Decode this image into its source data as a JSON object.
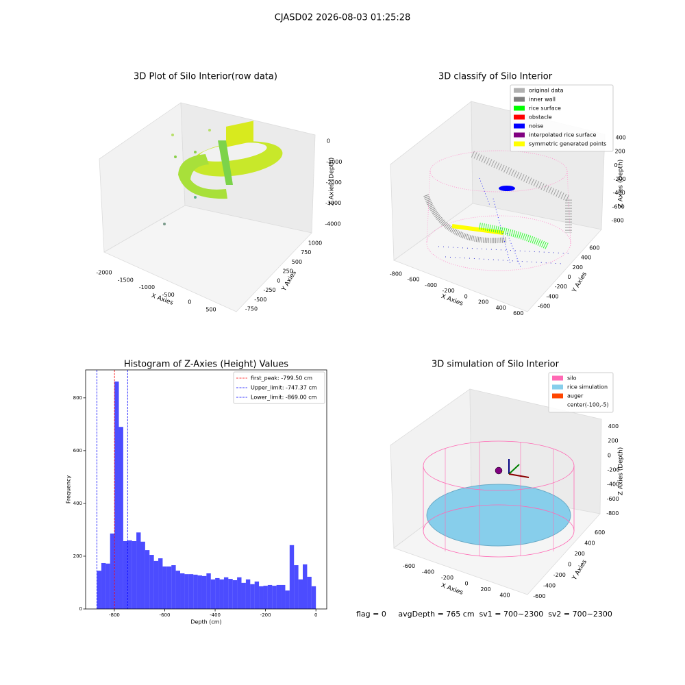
{
  "title": "CJASD02 2026-08-03 01:25:28",
  "footer": "flag = 0     avgDepth = 765 cm  sv1 = 700~2300  sv2 = 700~2300",
  "chart_data": [
    {
      "type": "scatter3d",
      "title": "3D Plot of Silo Interior(row data)",
      "xlabel": "X Axies",
      "ylabel": "Y Axies",
      "zlabel": "Z Axies (Depth)",
      "xlim": [
        -2050,
        1000
      ],
      "xticks": [
        -2000,
        -1500,
        -1000,
        -500,
        0,
        500
      ],
      "ylim": [
        -850,
        1100
      ],
      "yticks": [
        -750,
        -500,
        -250,
        0,
        250,
        500,
        750,
        1000
      ],
      "zlim": [
        -4500,
        300
      ],
      "zticks": [
        -4000,
        -3000,
        -2000,
        -1000,
        0
      ]
    },
    {
      "type": "scatter3d",
      "title": "3D classify of Silo Interior",
      "xlabel": "X Axies",
      "ylabel": "Y Axies",
      "zlabel": "Z Axies (Depth)",
      "xlim": [
        -870,
        680
      ],
      "xticks": [
        -800,
        -600,
        -400,
        -200,
        0,
        200,
        400,
        600
      ],
      "ylim": [
        -700,
        700
      ],
      "yticks": [
        -600,
        -400,
        -200,
        0,
        200,
        400,
        600
      ],
      "zlim": [
        -900,
        500
      ],
      "zticks": [
        -800,
        -600,
        -400,
        -200,
        0,
        200,
        400
      ],
      "legend": {
        "loc": "upper right",
        "entries": [
          {
            "name": "original data",
            "color": "#b0b0b0"
          },
          {
            "name": "inner wall",
            "color": "#808080"
          },
          {
            "name": "rice surface",
            "color": "#00ff00"
          },
          {
            "name": "obstacle",
            "color": "#ff0000"
          },
          {
            "name": "noise",
            "color": "#0000ff"
          },
          {
            "name": "interpolated rice surface",
            "color": "#800080"
          },
          {
            "name": "symmetric generated points",
            "color": "#ffff00"
          }
        ]
      }
    },
    {
      "type": "histogram",
      "title": "Histogram of Z-Axies (Height) Values",
      "xlabel": "Depth (cm)",
      "ylabel": "Frequency",
      "color": "#0000ff",
      "alpha": 0.7,
      "bins": [
        -869.0,
        -851.62,
        -834.24,
        -816.86,
        -799.48,
        -782.1,
        -764.72,
        -747.34,
        -729.96,
        -712.58,
        -695.2,
        -677.82,
        -660.44,
        -643.06,
        -625.68,
        -608.3,
        -590.92,
        -573.54,
        -556.16,
        -538.78,
        -521.4,
        -504.02,
        -486.64,
        -469.26,
        -451.88,
        -434.5,
        -417.12,
        -399.74,
        -382.36,
        -364.98,
        -347.6,
        -330.22,
        -312.84,
        -295.46,
        -278.08,
        -260.7,
        -243.32,
        -225.94,
        -208.56,
        -191.18,
        -173.8,
        -156.42,
        -139.04,
        -121.66,
        -104.28,
        -86.9,
        -69.52,
        -52.14,
        -34.76,
        -17.38,
        0
      ],
      "values": [
        145,
        174,
        172,
        286,
        862,
        690,
        257,
        260,
        257,
        290,
        255,
        223,
        205,
        182,
        192,
        161,
        161,
        166,
        145,
        135,
        132,
        132,
        130,
        127,
        125,
        135,
        112,
        117,
        112,
        120,
        114,
        109,
        120,
        99,
        112,
        94,
        104,
        86,
        88,
        91,
        88,
        91,
        91,
        70,
        242,
        166,
        112,
        169,
        122,
        86
      ],
      "xlim": [
        -914,
        43
      ],
      "xticks": [
        -800,
        -600,
        -400,
        -200,
        0
      ],
      "ylim": [
        0,
        906
      ],
      "yticks": [
        0,
        200,
        400,
        600,
        800
      ],
      "vlines": [
        {
          "name": "first_peak: -799.50 cm",
          "value": -799.5,
          "color": "#ff0000"
        },
        {
          "name": "Upper_limit: -747.37 cm",
          "value": -747.37,
          "color": "#0000ff"
        },
        {
          "name": "Lower_limit: -869.00 cm",
          "value": -869.0,
          "color": "#0000ff"
        }
      ],
      "legend": {
        "loc": "upper right"
      }
    },
    {
      "type": "surface3d",
      "title": "3D simulation of Silo Interior",
      "xlabel": "X Axies",
      "ylabel": "Y Axies",
      "zlabel": "Z Axies (Depth)",
      "xlim": [
        -750,
        500
      ],
      "xticks": [
        -600,
        -400,
        -200,
        0,
        200,
        400
      ],
      "ylim": [
        -700,
        700
      ],
      "yticks": [
        -600,
        -400,
        -200,
        0,
        200,
        400,
        600
      ],
      "zlim": [
        -900,
        500
      ],
      "zticks": [
        -800,
        -600,
        -400,
        -200,
        0,
        200,
        400
      ],
      "legend": {
        "loc": "upper right",
        "entries": [
          {
            "name": "silo",
            "color": "#ff69b4"
          },
          {
            "name": "rice simulation",
            "color": "#87ceeb"
          },
          {
            "name": "auger",
            "color": "#ff4500"
          },
          {
            "name": "center(-100,-5)",
            "color": "#ffffff"
          }
        ]
      }
    }
  ]
}
